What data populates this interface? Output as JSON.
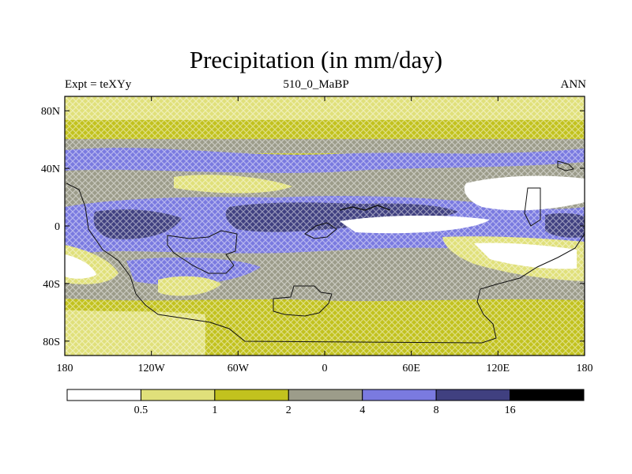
{
  "title": "Precipitation (in mm/day)",
  "subtitle_left": "Expt = teXYy",
  "subtitle_center": "510_0_MaBP",
  "subtitle_right": "ANN",
  "lat_ticks": [
    {
      "label": "80N",
      "value": 80
    },
    {
      "label": "40N",
      "value": 40
    },
    {
      "label": "0",
      "value": 0
    },
    {
      "label": "40S",
      "value": -40
    },
    {
      "label": "80S",
      "value": -80
    }
  ],
  "lon_ticks": [
    {
      "label": "180",
      "value": -180
    },
    {
      "label": "120W",
      "value": -120
    },
    {
      "label": "60W",
      "value": -60
    },
    {
      "label": "0",
      "value": 0
    },
    {
      "label": "60E",
      "value": 60
    },
    {
      "label": "120E",
      "value": 120
    },
    {
      "label": "180",
      "value": 180
    }
  ],
  "colorbar": {
    "colors": [
      "#ffffff",
      "#e0e07a",
      "#c2c21e",
      "#9c9c8a",
      "#7a7ae0",
      "#404080",
      "#000000"
    ],
    "labels": [
      "0.5",
      "1",
      "2",
      "4",
      "8",
      "16"
    ]
  },
  "chart_data": {
    "type": "heatmap",
    "title": "Precipitation (in mm/day)",
    "variable": "Precipitation",
    "units": "mm/day",
    "xlim": [
      -180,
      180
    ],
    "ylim": [
      -90,
      90
    ],
    "levels": [
      0.5,
      1,
      2,
      4,
      8,
      16
    ],
    "description_bands": [
      {
        "lat_range": [
          70,
          90
        ],
        "value_range": "0.5-1"
      },
      {
        "lat_range": [
          50,
          70
        ],
        "value_range": "1-2"
      },
      {
        "lat_range": [
          30,
          50
        ],
        "value_range": "2-8"
      },
      {
        "lat_range": [
          -10,
          20
        ],
        "value_range": "4-16"
      },
      {
        "lat_range": [
          -50,
          -10
        ],
        "value_range": "1-4"
      },
      {
        "lat_range": [
          -90,
          -50
        ],
        "value_range": "1-2"
      }
    ]
  }
}
